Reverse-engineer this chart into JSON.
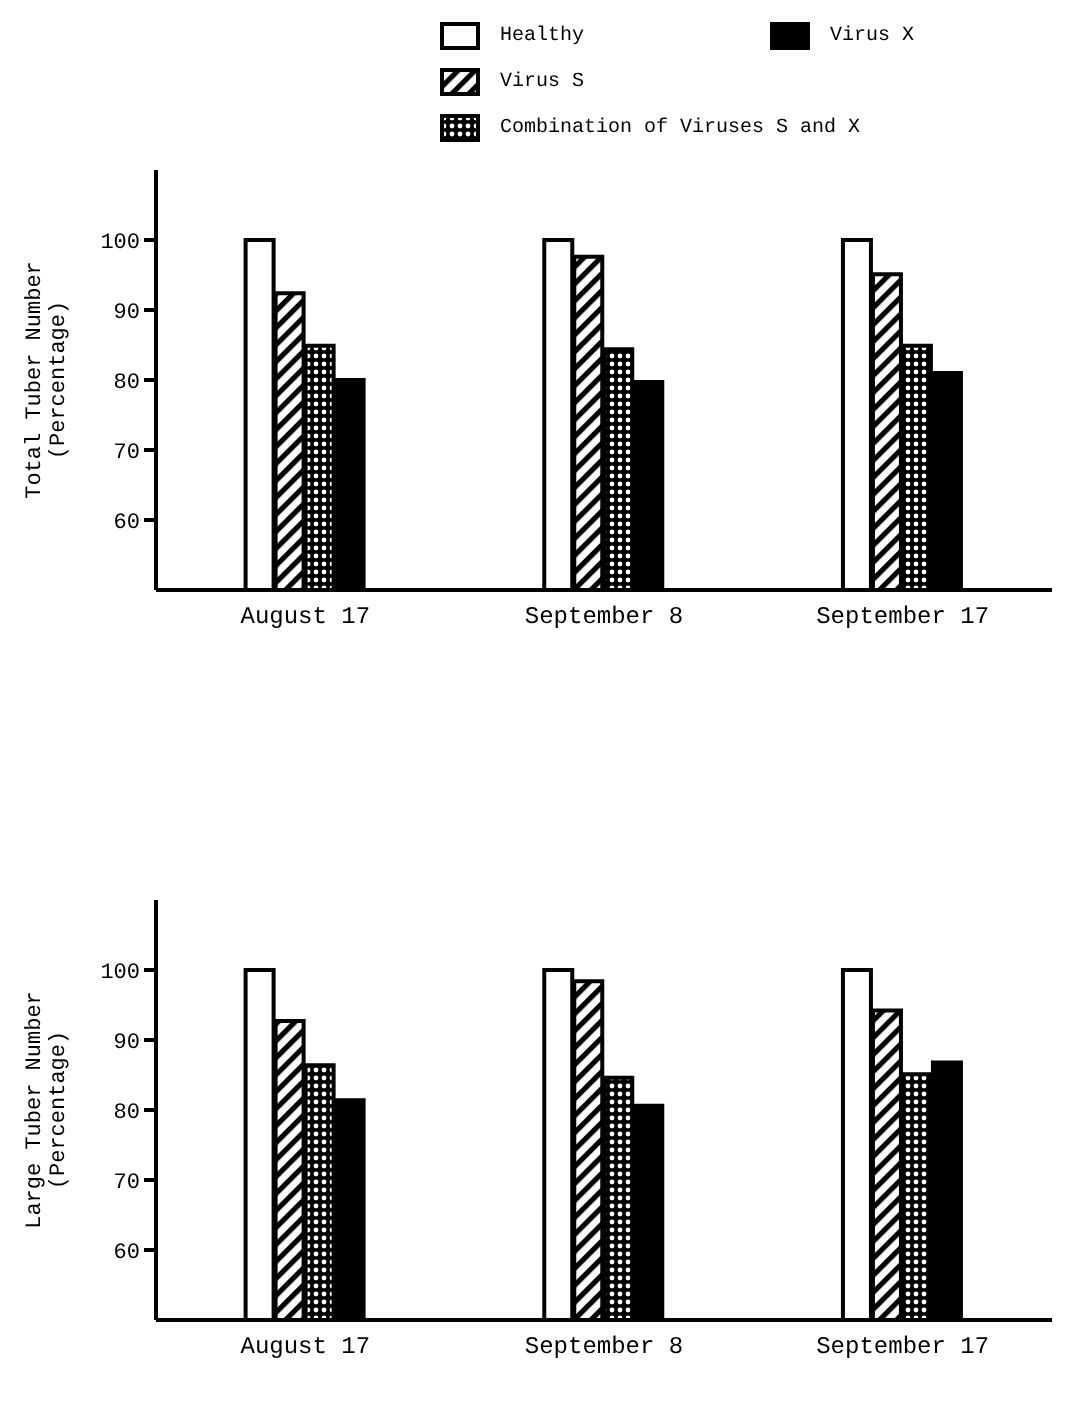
{
  "chart_data": [
    {
      "type": "bar",
      "ylabel": "Total Tuber Number\n(Percentage)",
      "categories": [
        "August 17",
        "September 8",
        "September 17"
      ],
      "ylim": [
        50,
        110
      ],
      "yticks": [
        60,
        70,
        80,
        90,
        100
      ],
      "legend": "top",
      "grid": false,
      "series": [
        {
          "name": "Healthy",
          "color": "#ffffff",
          "values": [
            100,
            100,
            100
          ]
        },
        {
          "name": "Virus S",
          "color": "#000000",
          "values": [
            92.4,
            97.6,
            95.1
          ]
        },
        {
          "name": "Combination of Viruses S and X",
          "color": "#000000",
          "values": [
            84.9,
            84.4,
            84.9
          ]
        },
        {
          "name": "Virus X",
          "color": "#000000",
          "values": [
            80,
            79.7,
            81
          ]
        }
      ]
    },
    {
      "type": "bar",
      "ylabel": "Large Tuber Number\n(Percentage)",
      "categories": [
        "August 17",
        "September 8",
        "September 17"
      ],
      "ylim": [
        50,
        110
      ],
      "yticks": [
        60,
        70,
        80,
        90,
        100
      ],
      "legend": false,
      "grid": false,
      "series": [
        {
          "color": "#ffffff",
          "values": [
            100,
            100,
            100
          ]
        },
        {
          "color": "#000000",
          "values": [
            92.7,
            98.4,
            94.2
          ]
        },
        {
          "color": "#000000",
          "values": [
            86.4,
            84.6,
            85.1
          ]
        },
        {
          "color": "#000000",
          "values": [
            81.4,
            80.6,
            86.8
          ]
        }
      ]
    }
  ]
}
